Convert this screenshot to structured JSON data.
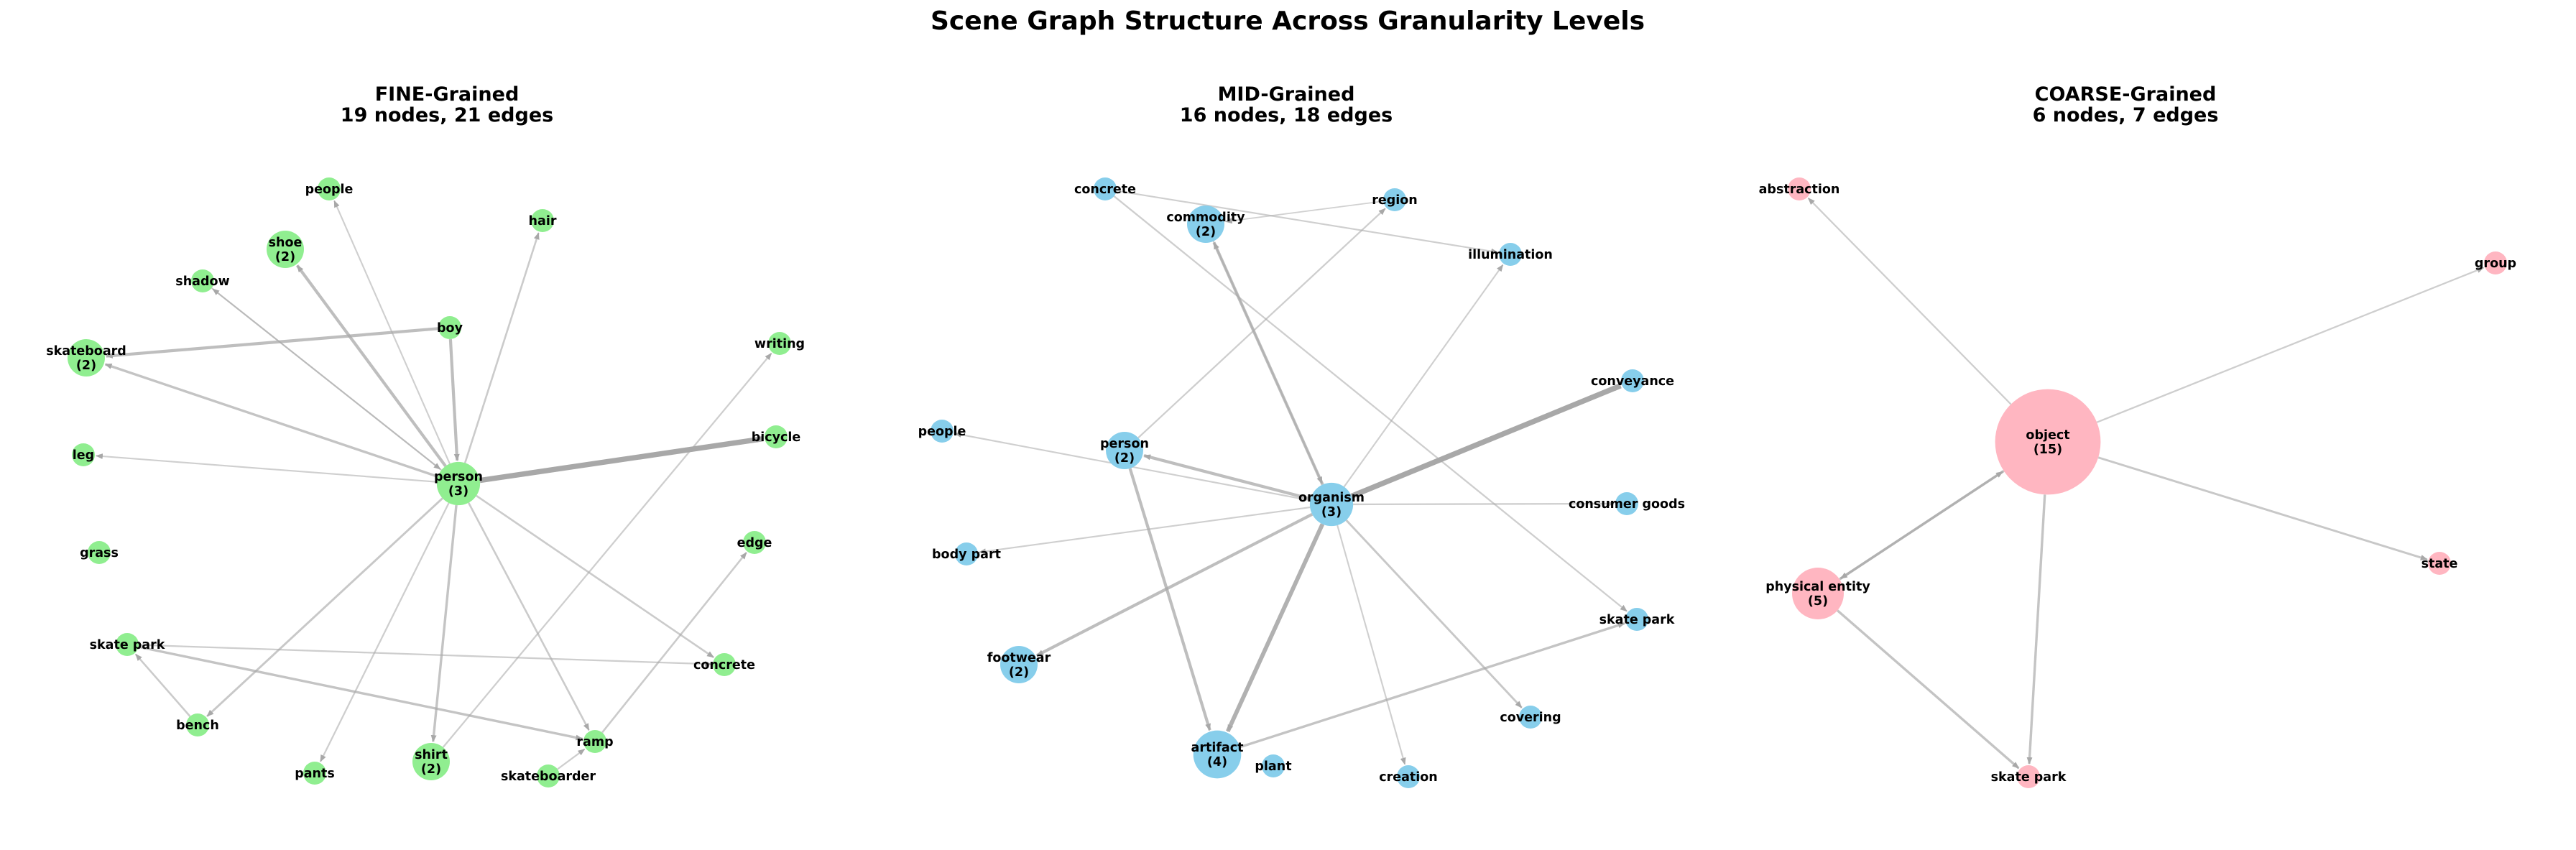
{
  "title": "Scene Graph Structure Across Granularity Levels",
  "colors": {
    "fine": "#90ee90",
    "mid": "#87ceeb",
    "coarse": "#ffb6c1",
    "edge": "#a8a8a8"
  },
  "panels": [
    {
      "id": "fine",
      "title": "FINE-Grained",
      "subtitle": "19 nodes, 21 edges",
      "nodes": [
        {
          "id": "people",
          "label": "people"
        },
        {
          "id": "hair",
          "label": "hair"
        },
        {
          "id": "shoe",
          "label": "shoe\n(2)",
          "count": 2
        },
        {
          "id": "shadow",
          "label": "shadow"
        },
        {
          "id": "boy",
          "label": "boy"
        },
        {
          "id": "skateboard",
          "label": "skateboard\n(2)",
          "count": 2
        },
        {
          "id": "writing",
          "label": "writing"
        },
        {
          "id": "bicycle",
          "label": "bicycle"
        },
        {
          "id": "leg",
          "label": "leg"
        },
        {
          "id": "person",
          "label": "person\n(3)",
          "count": 3
        },
        {
          "id": "edge",
          "label": "edge"
        },
        {
          "id": "grass",
          "label": "grass"
        },
        {
          "id": "skate_park",
          "label": "skate park"
        },
        {
          "id": "concrete",
          "label": "concrete"
        },
        {
          "id": "bench",
          "label": "bench"
        },
        {
          "id": "ramp",
          "label": "ramp"
        },
        {
          "id": "shirt",
          "label": "shirt\n(2)",
          "count": 2
        },
        {
          "id": "pants",
          "label": "pants"
        },
        {
          "id": "skateboarder",
          "label": "skateboarder"
        }
      ],
      "edges": [
        {
          "source": "person",
          "target": "bicycle",
          "weight": 4
        },
        {
          "source": "person",
          "target": "shoe",
          "weight": 2
        },
        {
          "source": "person",
          "target": "skateboard",
          "weight": 1.5
        },
        {
          "source": "person",
          "target": "shirt",
          "weight": 1.5
        },
        {
          "source": "person",
          "target": "bench",
          "weight": 1.2
        },
        {
          "source": "person",
          "target": "hair",
          "weight": 1
        },
        {
          "source": "person",
          "target": "concrete",
          "weight": 1
        },
        {
          "source": "person",
          "target": "ramp",
          "weight": 1
        },
        {
          "source": "person",
          "target": "pants",
          "weight": 0.8
        },
        {
          "source": "person",
          "target": "people",
          "weight": 0.7
        },
        {
          "source": "person",
          "target": "shadow",
          "weight": 0.7
        },
        {
          "source": "person",
          "target": "leg",
          "weight": 0.7
        },
        {
          "source": "boy",
          "target": "skateboard",
          "weight": 2
        },
        {
          "source": "boy",
          "target": "person",
          "weight": 2
        },
        {
          "source": "shadow",
          "target": "person",
          "weight": 0.7
        },
        {
          "source": "bench",
          "target": "skate_park",
          "weight": 1
        },
        {
          "source": "skate_park",
          "target": "ramp",
          "weight": 1.5
        },
        {
          "source": "skate_park",
          "target": "concrete",
          "weight": 0.8
        },
        {
          "source": "ramp",
          "target": "edge",
          "weight": 1
        },
        {
          "source": "shirt",
          "target": "writing",
          "weight": 0.8
        },
        {
          "source": "skateboarder",
          "target": "ramp",
          "weight": 0.8
        }
      ]
    },
    {
      "id": "mid",
      "title": "MID-Grained",
      "subtitle": "16 nodes, 18 edges",
      "nodes": [
        {
          "id": "concrete",
          "label": "concrete"
        },
        {
          "id": "region",
          "label": "region"
        },
        {
          "id": "commodity",
          "label": "commodity\n(2)",
          "count": 2
        },
        {
          "id": "illumination",
          "label": "illumination"
        },
        {
          "id": "conveyance",
          "label": "conveyance"
        },
        {
          "id": "people",
          "label": "people"
        },
        {
          "id": "person",
          "label": "person\n(2)",
          "count": 2
        },
        {
          "id": "organism",
          "label": "organism\n(3)",
          "count": 3
        },
        {
          "id": "consumer_goods",
          "label": "consumer goods"
        },
        {
          "id": "body_part",
          "label": "body part"
        },
        {
          "id": "skate_park",
          "label": "skate park"
        },
        {
          "id": "footwear",
          "label": "footwear\n(2)",
          "count": 2
        },
        {
          "id": "covering",
          "label": "covering"
        },
        {
          "id": "artifact",
          "label": "artifact\n(4)",
          "count": 4
        },
        {
          "id": "plant",
          "label": "plant"
        },
        {
          "id": "creation",
          "label": "creation"
        }
      ],
      "edges": [
        {
          "source": "organism",
          "target": "conveyance",
          "weight": 4
        },
        {
          "source": "organism",
          "target": "commodity",
          "weight": 2
        },
        {
          "source": "organism",
          "target": "artifact",
          "weight": 3
        },
        {
          "source": "organism",
          "target": "footwear",
          "weight": 2
        },
        {
          "source": "organism",
          "target": "person",
          "weight": 2
        },
        {
          "source": "organism",
          "target": "covering",
          "weight": 1.2
        },
        {
          "source": "organism",
          "target": "consumer_goods",
          "weight": 0.8
        },
        {
          "source": "organism",
          "target": "body_part",
          "weight": 0.7
        },
        {
          "source": "organism",
          "target": "people",
          "weight": 0.7
        },
        {
          "source": "organism",
          "target": "illumination",
          "weight": 0.7
        },
        {
          "source": "organism",
          "target": "creation",
          "weight": 0.7
        },
        {
          "source": "person",
          "target": "region",
          "weight": 0.8
        },
        {
          "source": "person",
          "target": "artifact",
          "weight": 2
        },
        {
          "source": "artifact",
          "target": "skate_park",
          "weight": 1.5
        },
        {
          "source": "concrete",
          "target": "skate_park",
          "weight": 0.8
        },
        {
          "source": "concrete",
          "target": "illumination",
          "weight": 0.7
        },
        {
          "source": "commodity",
          "target": "organism",
          "weight": 0.7
        },
        {
          "source": "region",
          "target": "commodity",
          "weight": 0.5
        }
      ]
    },
    {
      "id": "coarse",
      "title": "COARSE-Grained",
      "subtitle": "6 nodes, 7 edges",
      "nodes": [
        {
          "id": "abstraction",
          "label": "abstraction"
        },
        {
          "id": "group",
          "label": "group"
        },
        {
          "id": "object",
          "label": "object\n(15)",
          "count": 15
        },
        {
          "id": "state",
          "label": "state"
        },
        {
          "id": "physical_entity",
          "label": "physical entity\n(5)",
          "count": 5
        },
        {
          "id": "skate_park",
          "label": "skate park"
        }
      ],
      "edges": [
        {
          "source": "object",
          "target": "abstraction",
          "weight": 0.8
        },
        {
          "source": "object",
          "target": "group",
          "weight": 0.8
        },
        {
          "source": "object",
          "target": "state",
          "weight": 1.2
        },
        {
          "source": "object",
          "target": "skate_park",
          "weight": 1.5
        },
        {
          "source": "object",
          "target": "physical_entity",
          "weight": 1.5
        },
        {
          "source": "physical_entity",
          "target": "object",
          "weight": 1.5
        },
        {
          "source": "physical_entity",
          "target": "skate_park",
          "weight": 1.5
        }
      ]
    }
  ]
}
